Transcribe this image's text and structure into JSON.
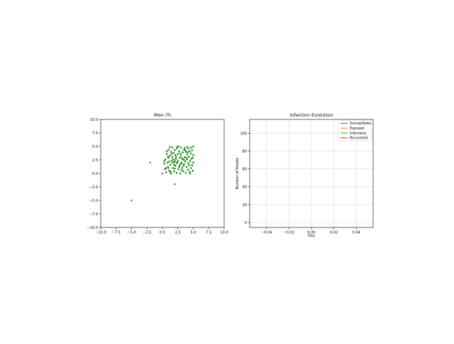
{
  "chart_data": [
    {
      "type": "scatter",
      "title": "Mon-7h",
      "xlabel": "",
      "ylabel": "",
      "xlim": [
        -10,
        10
      ],
      "ylim": [
        -10,
        10
      ],
      "xticks": [
        "−10.0",
        "−7.5",
        "−5.0",
        "−2.5",
        "0.0",
        "2.5",
        "5.0",
        "7.5",
        "10.0"
      ],
      "yticks": [
        "−10.0",
        "−7.5",
        "−5.0",
        "−2.5",
        "0.0",
        "2.5",
        "5.0",
        "7.5",
        "10.0"
      ],
      "grid": false,
      "series": [
        {
          "color": "#228b22",
          "points": [
            [
              0.3,
              1.8
            ],
            [
              0.5,
              2.6
            ],
            [
              0.6,
              1.0
            ],
            [
              0.7,
              3.6
            ],
            [
              0.8,
              2.0
            ],
            [
              0.9,
              1.2
            ],
            [
              1.0,
              4.4
            ],
            [
              1.0,
              2.9
            ],
            [
              1.1,
              0.5
            ],
            [
              1.2,
              3.3
            ],
            [
              1.3,
              1.6
            ],
            [
              1.4,
              4.0
            ],
            [
              1.4,
              0.0
            ],
            [
              1.5,
              2.4
            ],
            [
              1.6,
              4.8
            ],
            [
              1.6,
              3.0
            ],
            [
              1.7,
              1.0
            ],
            [
              1.8,
              3.8
            ],
            [
              1.9,
              2.1
            ],
            [
              1.9,
              0.4
            ],
            [
              2.0,
              4.3
            ],
            [
              2.1,
              3.4
            ],
            [
              2.1,
              1.4
            ],
            [
              2.2,
              2.7
            ],
            [
              2.3,
              0.1
            ],
            [
              2.3,
              4.6
            ],
            [
              2.4,
              1.9
            ],
            [
              2.5,
              3.6
            ],
            [
              2.5,
              2.3
            ],
            [
              2.6,
              0.8
            ],
            [
              2.7,
              4.1
            ],
            [
              2.8,
              2.9
            ],
            [
              2.8,
              1.5
            ],
            [
              2.9,
              0.0
            ],
            [
              3.0,
              3.3
            ],
            [
              3.0,
              4.8
            ],
            [
              3.1,
              2.0
            ],
            [
              3.2,
              1.0
            ],
            [
              3.3,
              3.9
            ],
            [
              3.3,
              2.6
            ],
            [
              3.4,
              0.4
            ],
            [
              3.5,
              4.4
            ],
            [
              3.5,
              1.7
            ],
            [
              3.6,
              3.0
            ],
            [
              3.7,
              2.2
            ],
            [
              3.8,
              0.1
            ],
            [
              3.8,
              4.0
            ],
            [
              3.9,
              1.2
            ],
            [
              4.0,
              3.5
            ],
            [
              4.0,
              2.6
            ],
            [
              4.1,
              0.7
            ],
            [
              4.2,
              4.6
            ],
            [
              4.2,
              1.9
            ],
            [
              4.3,
              3.1
            ],
            [
              4.4,
              0.3
            ],
            [
              4.4,
              4.1
            ],
            [
              4.5,
              2.3
            ],
            [
              4.6,
              1.0
            ],
            [
              4.6,
              3.7
            ],
            [
              4.7,
              2.7
            ],
            [
              4.8,
              1.5
            ],
            [
              4.8,
              4.3
            ],
            [
              4.9,
              0.5
            ],
            [
              5.0,
              3.4
            ],
            [
              5.0,
              2.0
            ],
            [
              1.2,
              4.9
            ],
            [
              2.6,
              5.0
            ],
            [
              3.6,
              4.7
            ],
            [
              0.6,
              0.2
            ],
            [
              4.5,
              0.0
            ],
            [
              1.8,
              2.6
            ],
            [
              2.9,
              3.7
            ],
            [
              3.9,
              2.9
            ],
            [
              2.0,
              0.9
            ],
            [
              3.4,
              1.4
            ],
            [
              1.1,
              2.2
            ],
            [
              4.1,
              3.9
            ],
            [
              2.4,
              4.9
            ],
            [
              3.1,
              0.6
            ],
            [
              1.5,
              3.6
            ],
            [
              0.9,
              3.1
            ],
            [
              4.9,
              2.9
            ],
            [
              2.7,
              1.2
            ],
            [
              3.7,
              4.3
            ],
            [
              1.9,
              1.6
            ],
            [
              0.4,
              0.8
            ],
            [
              4.3,
              1.5
            ],
            [
              2.2,
              3.1
            ],
            [
              1.3,
              0.3
            ],
            [
              3.2,
              2.8
            ],
            [
              5.0,
              5.0
            ],
            [
              4.0,
              4.9
            ],
            [
              2.0,
              2.3
            ],
            [
              3.0,
              1.8
            ],
            [
              1.6,
              2.0
            ],
            [
              0.7,
              4.1
            ],
            [
              2.3,
              2.0
            ],
            [
              3.5,
              2.5
            ],
            [
              4.6,
              4.8
            ],
            [
              0.3,
              2.3
            ]
          ]
        },
        {
          "color": "#808080",
          "points": [
            [
              -5.0,
              -5.0
            ],
            [
              -2.0,
              2.0
            ],
            [
              2.0,
              -2.0
            ],
            [
              0.0,
              0.0
            ],
            [
              1.0,
              1.0
            ]
          ]
        }
      ]
    },
    {
      "type": "line",
      "title": "Infection Evolution",
      "xlabel": "Day",
      "ylabel": "Number of People",
      "xlim": [
        -0.055,
        0.055
      ],
      "ylim": [
        -5.5,
        115.5
      ],
      "xtick_values": [
        -0.04,
        -0.02,
        0.0,
        0.02,
        0.04
      ],
      "xticks": [
        "−0.04",
        "−0.02",
        "0.00",
        "0.02",
        "0.04"
      ],
      "ytick_values": [
        0,
        20,
        40,
        60,
        80,
        100
      ],
      "yticks": [
        "0",
        "20",
        "40",
        "60",
        "80",
        "100"
      ],
      "grid": true,
      "legend_position": "top-right",
      "series": [
        {
          "name": "Susceptibles",
          "color": "#1f77b4",
          "values": []
        },
        {
          "name": "Exposed",
          "color": "#ff7f0e",
          "values": []
        },
        {
          "name": "Infectious",
          "color": "#2ca02c",
          "values": []
        },
        {
          "name": "Recovered",
          "color": "#d62728",
          "values": []
        }
      ]
    }
  ]
}
